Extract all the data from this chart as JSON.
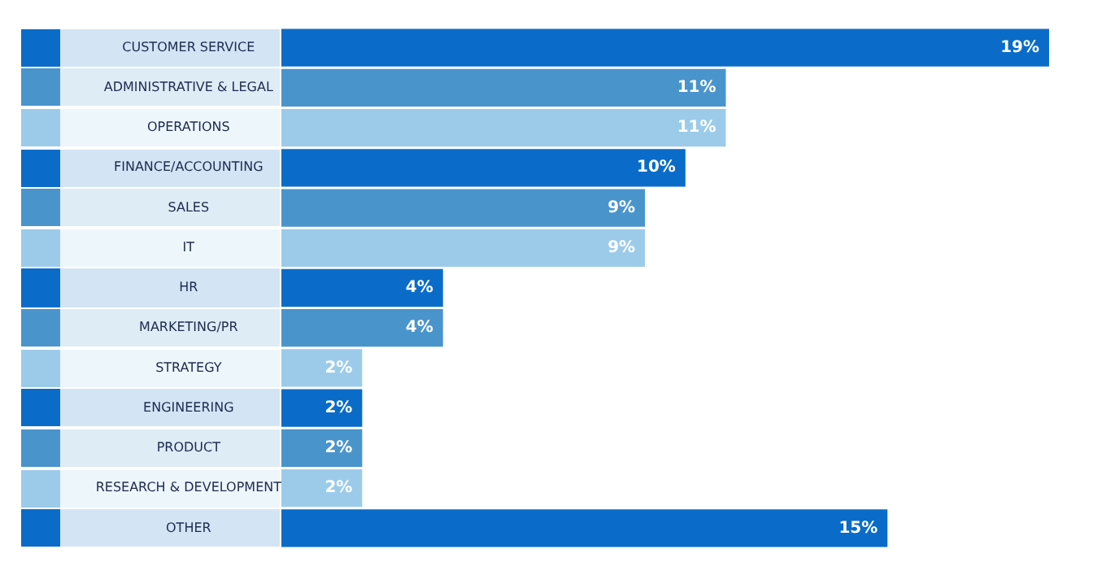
{
  "chart_data": {
    "type": "bar",
    "orientation": "horizontal",
    "categories": [
      "CUSTOMER SERVICE",
      "ADMINISTRATIVE & LEGAL",
      "OPERATIONS",
      "FINANCE/ACCOUNTING",
      "SALES",
      "IT",
      "HR",
      "MARKETING/PR",
      "STRATEGY",
      "ENGINEERING",
      "PRODUCT",
      "RESEARCH & DEVELOPMENT",
      "OTHER"
    ],
    "values": [
      19,
      11,
      11,
      10,
      9,
      9,
      4,
      4,
      2,
      2,
      2,
      2,
      15
    ],
    "colors": [
      "#0a6cc8",
      "#4a94cc",
      "#9ccbea",
      "#0a6cc8",
      "#4a94cc",
      "#9ccbea",
      "#0a6cc8",
      "#4a94cc",
      "#9ccbea",
      "#0a6cc8",
      "#4a94cc",
      "#9ccbea",
      "#0a6cc8"
    ],
    "value_labels": [
      "19%",
      "11%",
      "11%",
      "10%",
      "9%",
      "9%",
      "4%",
      "4%",
      "2%",
      "2%",
      "2%",
      "2%",
      "15%"
    ],
    "grid": false,
    "legend": false
  }
}
